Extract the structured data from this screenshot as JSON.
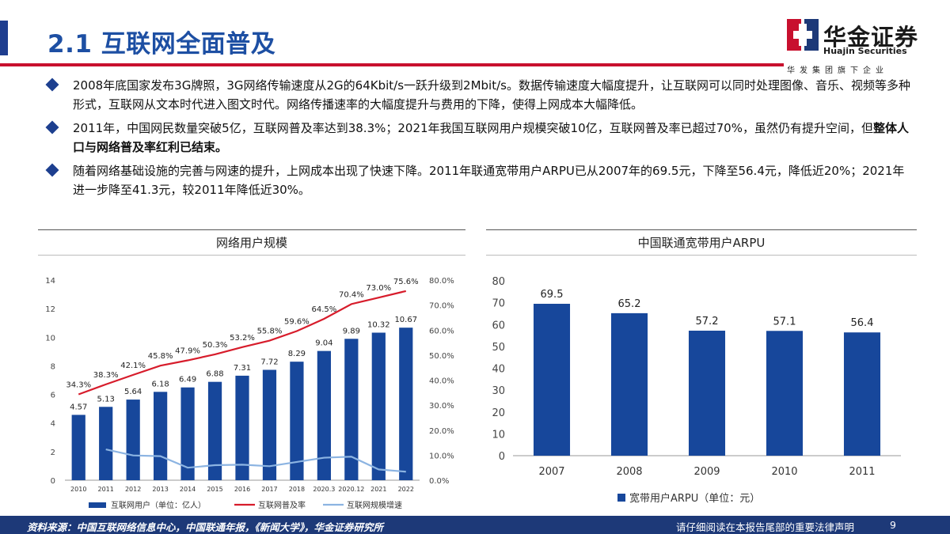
{
  "header": {
    "title": "2.1 互联网全面普及",
    "logo_cn": "华金证券",
    "logo_en": "Huajin Securities",
    "logo_sub": "华发集团旗下企业"
  },
  "bullets": [
    {
      "text": "2008年底国家发布3G牌照，3G网络传输速度从2G的64Kbit/s一跃升级到2Mbit/s。数据传输速度大幅度提升，让互联网可以同时处理图像、音乐、视频等多种形式，互联网从文本时代进入图文时代。网络传播速率的大幅度提升与费用的下降，使得上网成本大幅降低。",
      "bold": ""
    },
    {
      "text": "2011年，中国网民数量突破5亿，互联网普及率达到38.3%；2021年我国互联网用户规模突破10亿，互联网普及率已超过70%，虽然仍有提升空间，但",
      "bold": "整体人口与网络普及率红利已结束。"
    },
    {
      "text": "随着网络基础设施的完善与网速的提升，上网成本出现了快速下降。2011年联通宽带用户ARPU已从2007年的69.5元，下降至56.4元，降低近20%；2021年进一步降至41.3元，较2011年降低近30%。",
      "bold": ""
    }
  ],
  "footer": {
    "source": "资料来源：中国互联网络信息中心，中国联通年报，《新闻大学》，华金证券研究所",
    "disclaimer": "请仔细阅读在本报告尾部的重要法律声明",
    "page": "9"
  },
  "colors": {
    "navy": "#1d3978",
    "bar": "#17479b",
    "red": "#d71c2b",
    "light_blue": "#8cb4e2",
    "title_blue": "#1d4fa3"
  },
  "chart_data": [
    {
      "type": "bar",
      "title": "网络用户规模",
      "categories": [
        "2010",
        "2011",
        "2012",
        "2013",
        "2014",
        "2015",
        "2016",
        "2017",
        "2018",
        "2020.3",
        "2020.12",
        "2021",
        "2022"
      ],
      "series": [
        {
          "name": "互联网用户（单位：亿人）",
          "type": "bar",
          "axis": "left",
          "values": [
            4.57,
            5.13,
            5.64,
            6.18,
            6.49,
            6.88,
            7.31,
            7.72,
            8.29,
            9.04,
            9.89,
            10.32,
            10.67
          ]
        },
        {
          "name": "互联网普及率",
          "type": "line",
          "axis": "right",
          "values": [
            34.3,
            38.3,
            42.1,
            45.8,
            47.9,
            50.3,
            53.2,
            55.8,
            59.6,
            64.5,
            70.4,
            73.0,
            75.6
          ]
        },
        {
          "name": "互联网规模增速",
          "type": "line",
          "axis": "right",
          "values": [
            null,
            12.3,
            9.9,
            9.6,
            5.0,
            6.0,
            6.2,
            5.6,
            7.3,
            9.0,
            9.4,
            4.3,
            3.4
          ]
        }
      ],
      "value_labels": [
        "4.57",
        "5.13",
        "5.64",
        "6.18",
        "6.49",
        "6.88",
        "7.31",
        "7.72",
        "8.29",
        "9.04",
        "9.89",
        "10.32",
        "10.67"
      ],
      "rate_labels": [
        "34.3%",
        "38.3%",
        "42.1%",
        "45.8%",
        "47.9%",
        "50.3%",
        "53.2%",
        "55.8%",
        "59.6%",
        "64.5%",
        "70.4%",
        "73.0%",
        "75.6%"
      ],
      "ylim": [
        0,
        14
      ],
      "yticks": [
        "0",
        "2",
        "4",
        "6",
        "8",
        "10",
        "12",
        "14"
      ],
      "y2lim": [
        0,
        80
      ],
      "y2ticks": [
        "0.0%",
        "10.0%",
        "20.0%",
        "30.0%",
        "40.0%",
        "50.0%",
        "60.0%",
        "70.0%",
        "80.0%"
      ],
      "legend_position": "bottom",
      "grid": false
    },
    {
      "type": "bar",
      "title": "中国联通宽带用户ARPU",
      "categories": [
        "2007",
        "2008",
        "2009",
        "2010",
        "2011"
      ],
      "series": [
        {
          "name": "宽带用户ARPU（单位：元）",
          "values": [
            69.5,
            65.2,
            57.2,
            57.1,
            56.4
          ]
        }
      ],
      "value_labels": [
        "69.5",
        "65.2",
        "57.2",
        "57.1",
        "56.4"
      ],
      "ylim": [
        0,
        80
      ],
      "yticks": [
        "0",
        "10",
        "20",
        "30",
        "40",
        "50",
        "60",
        "70",
        "80"
      ],
      "legend_position": "bottom",
      "grid": false
    }
  ]
}
